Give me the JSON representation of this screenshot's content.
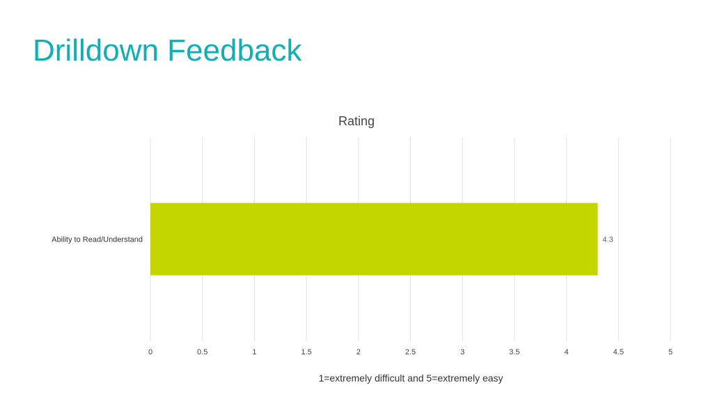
{
  "slide": {
    "title": "Drilldown Feedback"
  },
  "colors": {
    "title": "#14adb4",
    "bar": "#c4d600",
    "grid": "#e3e3e3"
  },
  "chart_data": {
    "type": "bar",
    "orientation": "horizontal",
    "title": "Rating",
    "xlabel": "1=extremely difficult and 5=extremely easy",
    "ylabel": "",
    "categories": [
      "Ability to Read/Understand"
    ],
    "values": [
      4.3
    ],
    "data_labels": [
      "4.3"
    ],
    "xlim": [
      0,
      5
    ],
    "ticks": [
      "0",
      "0.5",
      "1",
      "1.5",
      "2",
      "2.5",
      "3",
      "3.5",
      "4",
      "4.5",
      "5"
    ],
    "grid": true,
    "legend": "none"
  }
}
